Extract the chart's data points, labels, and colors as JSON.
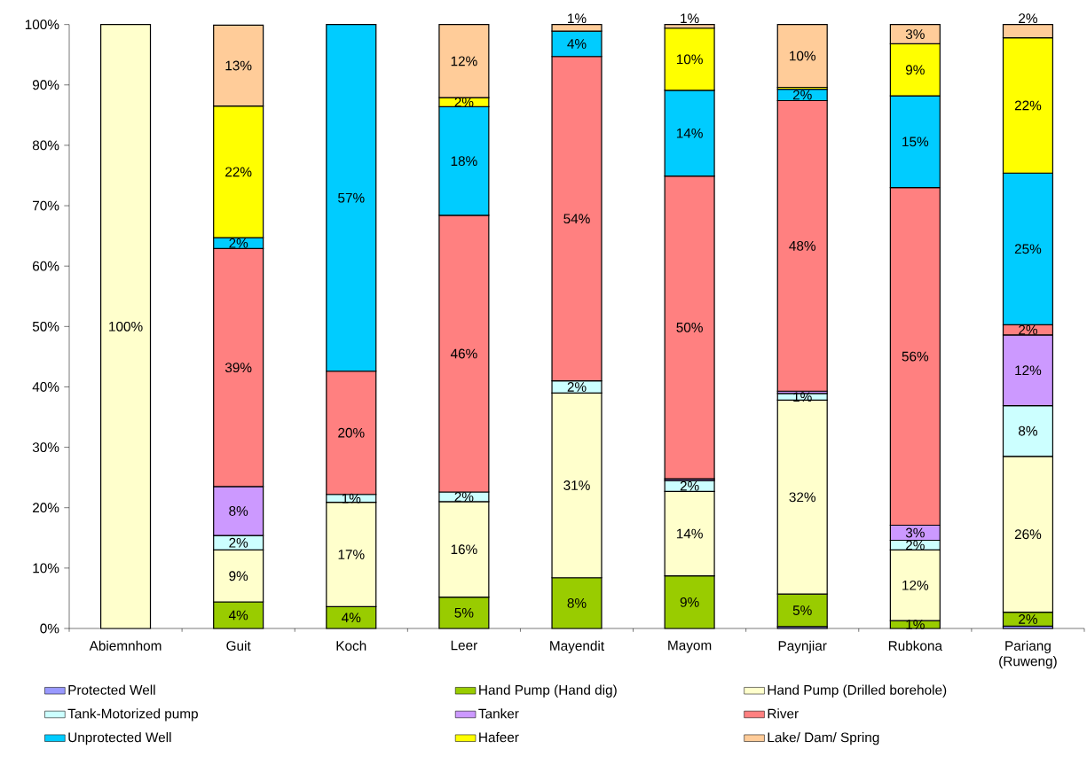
{
  "chart_data": {
    "type": "bar",
    "stacked": true,
    "categories": [
      "Abiemnhom",
      "Guit",
      "Koch",
      "Leer",
      "Mayendit",
      "Mayom",
      "Paynjiar",
      "Rubkona",
      "Pariang (Ruweng)"
    ],
    "ylim": [
      0,
      100
    ],
    "yticks": [
      {
        "value": 0,
        "label": "0%"
      },
      {
        "value": 10,
        "label": "10%"
      },
      {
        "value": 20,
        "label": "20%"
      },
      {
        "value": 30,
        "label": "30%"
      },
      {
        "value": 40,
        "label": "40%"
      },
      {
        "value": 50,
        "label": "50%"
      },
      {
        "value": 60,
        "label": "60%"
      },
      {
        "value": 70,
        "label": "70%"
      },
      {
        "value": 80,
        "label": "80%"
      },
      {
        "value": 90,
        "label": "90%"
      },
      {
        "value": 100,
        "label": "100%"
      }
    ],
    "legend": "bottom",
    "series": [
      {
        "name": "Protected Well",
        "color": "#9999ff",
        "values": [
          null,
          null,
          null,
          null,
          null,
          null,
          0.3,
          null,
          0.4
        ],
        "value_labels": [
          null,
          null,
          null,
          null,
          null,
          null,
          null,
          null,
          null
        ]
      },
      {
        "name": "Hand Pump (Hand dig)",
        "color": "#99cc00",
        "values": [
          null,
          4.4,
          3.6,
          5.2,
          8.4,
          8.7,
          5.4,
          1.3,
          2.3
        ],
        "value_labels": [
          null,
          "4%",
          "4%",
          "5%",
          "8%",
          "9%",
          "5%",
          "1%",
          "2%"
        ]
      },
      {
        "name": "Hand Pump (Drilled borehole)",
        "color": "#ffffcc",
        "values": [
          100,
          8.6,
          17.3,
          15.8,
          30.6,
          14.0,
          32.1,
          11.7,
          25.8
        ],
        "value_labels": [
          "100%",
          "9%",
          "17%",
          "16%",
          "31%",
          "14%",
          "32%",
          "12%",
          "26%"
        ]
      },
      {
        "name": "Tank-Motorized pump",
        "color": "#ccffff",
        "values": [
          null,
          2.4,
          1.3,
          1.6,
          2.0,
          1.8,
          1.1,
          1.6,
          8.4
        ],
        "value_labels": [
          null,
          "2%",
          "1%",
          "2%",
          "2%",
          "2%",
          "1%",
          "2%",
          "8%"
        ]
      },
      {
        "name": "Tanker",
        "color": "#cc99ff",
        "values": [
          null,
          8.1,
          null,
          null,
          null,
          0.3,
          0.4,
          2.5,
          11.7
        ],
        "value_labels": [
          null,
          "8%",
          null,
          null,
          null,
          null,
          null,
          "3%",
          "12%"
        ]
      },
      {
        "name": "River",
        "color": "#ff8080",
        "values": [
          null,
          39.4,
          20.4,
          45.8,
          53.7,
          50.1,
          48.1,
          55.9,
          1.7
        ],
        "value_labels": [
          null,
          "39%",
          "20%",
          "46%",
          "54%",
          "50%",
          "48%",
          "56%",
          "2%"
        ]
      },
      {
        "name": "Unprotected Well",
        "color": "#00ccff",
        "values": [
          null,
          1.8,
          57.4,
          18.0,
          4.2,
          14.2,
          1.9,
          15.2,
          25.1
        ],
        "value_labels": [
          null,
          "2%",
          "57%",
          "18%",
          "4%",
          "14%",
          "2%",
          "15%",
          "25%"
        ]
      },
      {
        "name": "Hafeer",
        "color": "#ffff00",
        "values": [
          null,
          21.8,
          null,
          1.5,
          null,
          10.3,
          0.3,
          8.6,
          22.4
        ],
        "value_labels": [
          null,
          "22%",
          null,
          "2%",
          null,
          "10%",
          null,
          "9%",
          "22%"
        ]
      },
      {
        "name": "Lake/ Dam/ Spring",
        "color": "#ffcc99",
        "values": [
          null,
          13.4,
          null,
          12.1,
          1.1,
          0.6,
          10.4,
          3.2,
          2.2
        ],
        "value_labels": [
          null,
          "13%",
          null,
          "12%",
          "1%",
          "1%",
          "10%",
          "3%",
          "2%"
        ]
      }
    ]
  }
}
